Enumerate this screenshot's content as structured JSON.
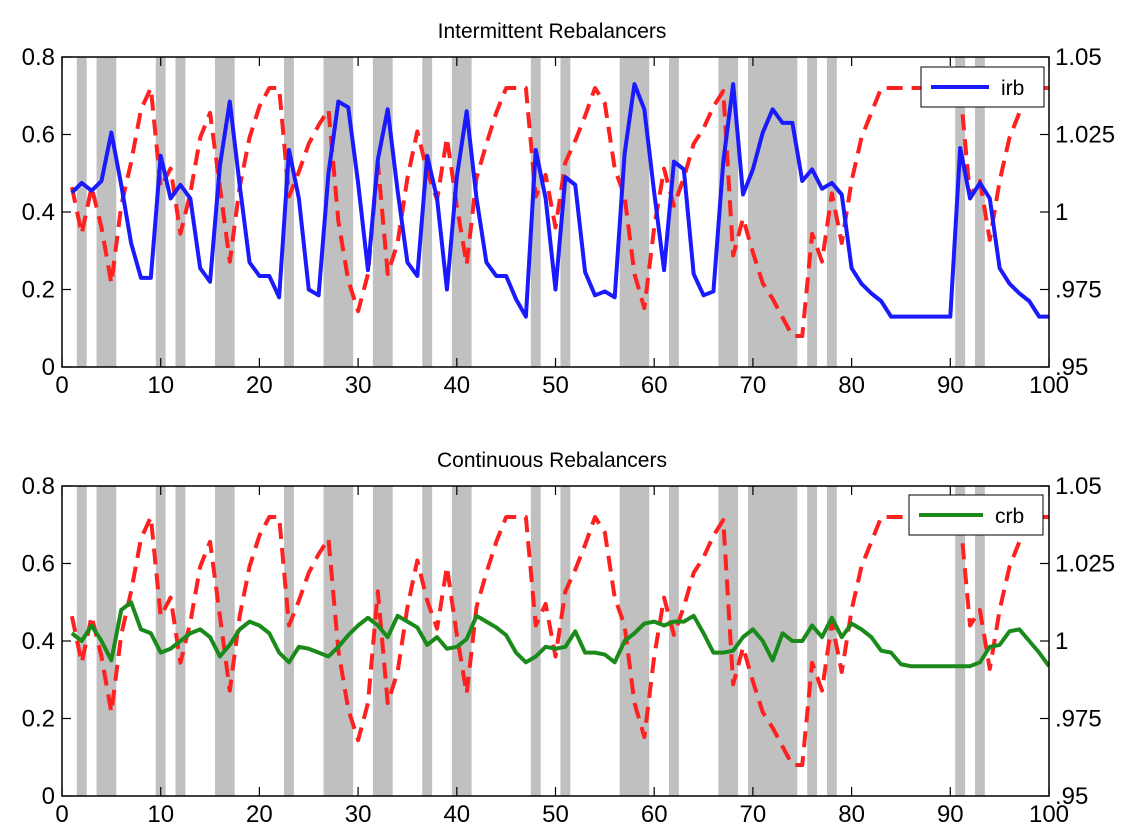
{
  "colors": {
    "background": "#ffffff",
    "shade": "#c0c0c0",
    "axes": "#000000",
    "dashed_series": "#ff2020",
    "irb_series": "#1a1aff",
    "crb_series": "#1a8a1a"
  },
  "chart_data": [
    {
      "type": "line",
      "title": "Intermittent Rebalancers",
      "xlim": [
        0,
        100
      ],
      "ylim": [
        0,
        0.8
      ],
      "y2lim": [
        0.95,
        1.05
      ],
      "grid": false,
      "legend_position": "top-right",
      "x_ticks": [
        0,
        10,
        20,
        30,
        40,
        50,
        60,
        70,
        80,
        90,
        100
      ],
      "x_tick_labels": [
        "0",
        "10",
        "20",
        "30",
        "40",
        "50",
        "60",
        "70",
        "80",
        "90",
        "100"
      ],
      "y_ticks": [
        0,
        0.2,
        0.4,
        0.6,
        0.8
      ],
      "y_tick_labels": [
        "0",
        "0.2",
        "0.4",
        "0.6",
        "0.8"
      ],
      "y2_ticks": [
        0.95,
        0.975,
        1.0,
        1.025,
        1.05
      ],
      "y2_tick_labels": [
        ".95",
        ".975",
        "1",
        "1.025",
        "1.05"
      ],
      "shaded_intervals": [
        [
          1.5,
          2.5
        ],
        [
          3.5,
          5.5
        ],
        [
          9.5,
          10.5
        ],
        [
          11.5,
          12.5
        ],
        [
          15.5,
          17.5
        ],
        [
          22.5,
          23.5
        ],
        [
          26.5,
          29.5
        ],
        [
          31.5,
          33.5
        ],
        [
          36.5,
          37.5
        ],
        [
          39.5,
          41.5
        ],
        [
          47.5,
          48.5
        ],
        [
          50.5,
          51.5
        ],
        [
          56.5,
          59.5
        ],
        [
          61.5,
          62.5
        ],
        [
          66.5,
          68.5
        ],
        [
          69.5,
          74.5
        ],
        [
          75.5,
          76.5
        ],
        [
          77.5,
          78.5
        ],
        [
          90.5,
          91.5
        ],
        [
          92.5,
          93.5
        ]
      ],
      "series": [
        {
          "name": "irb",
          "axis": "left",
          "style": "solid",
          "x": [
            1,
            2,
            3,
            4,
            5,
            6,
            7,
            8,
            9,
            10,
            11,
            12,
            13,
            14,
            15,
            16,
            17,
            18,
            19,
            20,
            21,
            22,
            23,
            24,
            25,
            26,
            27,
            28,
            29,
            30,
            31,
            32,
            33,
            34,
            35,
            36,
            37,
            38,
            39,
            40,
            41,
            42,
            43,
            44,
            45,
            46,
            47,
            48,
            49,
            50,
            51,
            52,
            53,
            54,
            55,
            56,
            57,
            58,
            59,
            60,
            61,
            62,
            63,
            64,
            65,
            66,
            67,
            68,
            69,
            70,
            71,
            72,
            73,
            74,
            75,
            76,
            77,
            78,
            79,
            80,
            81,
            82,
            83,
            84,
            85,
            86,
            87,
            88,
            89,
            90,
            91,
            92,
            93,
            94,
            95,
            96,
            97,
            98,
            99,
            100
          ],
          "y": [
            0.45,
            0.475,
            0.455,
            0.48,
            0.605,
            0.47,
            0.32,
            0.23,
            0.23,
            0.545,
            0.435,
            0.47,
            0.435,
            0.255,
            0.22,
            0.52,
            0.685,
            0.47,
            0.27,
            0.235,
            0.235,
            0.18,
            0.56,
            0.435,
            0.2,
            0.185,
            0.5,
            0.685,
            0.67,
            0.475,
            0.25,
            0.535,
            0.665,
            0.455,
            0.27,
            0.235,
            0.545,
            0.435,
            0.2,
            0.49,
            0.66,
            0.435,
            0.27,
            0.235,
            0.235,
            0.175,
            0.13,
            0.56,
            0.435,
            0.2,
            0.49,
            0.47,
            0.245,
            0.185,
            0.195,
            0.18,
            0.55,
            0.73,
            0.665,
            0.45,
            0.25,
            0.53,
            0.51,
            0.24,
            0.185,
            0.195,
            0.53,
            0.73,
            0.445,
            0.51,
            0.605,
            0.665,
            0.63,
            0.63,
            0.48,
            0.51,
            0.46,
            0.475,
            0.445,
            0.255,
            0.215,
            0.19,
            0.17,
            0.13,
            0.13,
            0.13,
            0.13,
            0.13,
            0.13,
            0.13,
            0.565,
            0.435,
            0.475,
            0.435,
            0.255,
            0.215,
            0.19,
            0.17,
            0.13,
            0.13
          ]
        },
        {
          "name": "",
          "axis": "right",
          "style": "dashed",
          "x": [
            1,
            2,
            3,
            4,
            5,
            6,
            7,
            8,
            9,
            10,
            11,
            12,
            13,
            14,
            15,
            16,
            17,
            18,
            19,
            20,
            21,
            22,
            23,
            24,
            25,
            26,
            27,
            28,
            29,
            30,
            31,
            32,
            33,
            34,
            35,
            36,
            37,
            38,
            39,
            40,
            41,
            42,
            43,
            44,
            45,
            46,
            47,
            48,
            49,
            50,
            51,
            52,
            53,
            54,
            55,
            56,
            57,
            58,
            59,
            60,
            61,
            62,
            63,
            64,
            65,
            66,
            67,
            68,
            69,
            70,
            71,
            72,
            73,
            74,
            75,
            76,
            77,
            78,
            79,
            80,
            81,
            82,
            83,
            84,
            85,
            86,
            87,
            88,
            89,
            90,
            91,
            92,
            93,
            94,
            95,
            96,
            97,
            98,
            99,
            100
          ],
          "y": [
            1.008,
            0.993,
            1.008,
            0.995,
            0.977,
            1.002,
            1.016,
            1.033,
            1.04,
            1.008,
            1.014,
            0.993,
            1.006,
            1.024,
            1.032,
            1.008,
            0.984,
            1.008,
            1.024,
            1.034,
            1.04,
            1.04,
            1.005,
            1.013,
            1.022,
            1.028,
            1.033,
            0.997,
            0.978,
            0.968,
            0.98,
            1.016,
            0.98,
            0.99,
            1.011,
            1.026,
            1.013,
            1.004,
            1.024,
            1.002,
            0.983,
            1.011,
            1.022,
            1.032,
            1.04,
            1.04,
            1.04,
            1.005,
            1.012,
            0.995,
            1.016,
            1.023,
            1.031,
            1.04,
            1.035,
            1.014,
            1.005,
            0.98,
            0.969,
            0.995,
            1.014,
            1.002,
            1.011,
            1.022,
            1.027,
            1.034,
            1.039,
            0.986,
            0.998,
            0.987,
            0.977,
            0.972,
            0.966,
            0.96,
            0.96,
            0.993,
            0.984,
            1.006,
            0.99,
            1.01,
            1.024,
            1.032,
            1.04,
            1.04,
            1.04,
            1.04,
            1.04,
            1.04,
            1.04,
            1.04,
            1.04,
            1.005,
            1.01,
            0.991,
            1.01,
            1.024,
            1.032,
            1.04,
            1.04,
            1.04
          ]
        }
      ]
    },
    {
      "type": "line",
      "title": "Continuous Rebalancers",
      "xlim": [
        0,
        100
      ],
      "ylim": [
        0,
        0.8
      ],
      "y2lim": [
        0.95,
        1.05
      ],
      "grid": false,
      "legend_position": "top-right",
      "x_ticks": [
        0,
        10,
        20,
        30,
        40,
        50,
        60,
        70,
        80,
        90,
        100
      ],
      "x_tick_labels": [
        "0",
        "10",
        "20",
        "30",
        "40",
        "50",
        "60",
        "70",
        "80",
        "90",
        "100"
      ],
      "y_ticks": [
        0,
        0.2,
        0.4,
        0.6,
        0.8
      ],
      "y_tick_labels": [
        "0",
        "0.2",
        "0.4",
        "0.6",
        "0.8"
      ],
      "y2_ticks": [
        0.95,
        0.975,
        1.0,
        1.025,
        1.05
      ],
      "y2_tick_labels": [
        ".95",
        ".975",
        "1",
        "1.025",
        "1.05"
      ],
      "shaded_intervals": [
        [
          1.5,
          2.5
        ],
        [
          3.5,
          5.5
        ],
        [
          9.5,
          10.5
        ],
        [
          11.5,
          12.5
        ],
        [
          15.5,
          17.5
        ],
        [
          22.5,
          23.5
        ],
        [
          26.5,
          29.5
        ],
        [
          31.5,
          33.5
        ],
        [
          36.5,
          37.5
        ],
        [
          39.5,
          41.5
        ],
        [
          47.5,
          48.5
        ],
        [
          50.5,
          51.5
        ],
        [
          56.5,
          59.5
        ],
        [
          61.5,
          62.5
        ],
        [
          66.5,
          68.5
        ],
        [
          69.5,
          74.5
        ],
        [
          75.5,
          76.5
        ],
        [
          77.5,
          78.5
        ],
        [
          90.5,
          91.5
        ],
        [
          92.5,
          93.5
        ]
      ],
      "series": [
        {
          "name": "crb",
          "axis": "left",
          "style": "solid",
          "x": [
            1,
            2,
            3,
            4,
            5,
            6,
            7,
            8,
            9,
            10,
            11,
            12,
            13,
            14,
            15,
            16,
            17,
            18,
            19,
            20,
            21,
            22,
            23,
            24,
            25,
            26,
            27,
            28,
            29,
            30,
            31,
            32,
            33,
            34,
            35,
            36,
            37,
            38,
            39,
            40,
            41,
            42,
            43,
            44,
            45,
            46,
            47,
            48,
            49,
            50,
            51,
            52,
            53,
            54,
            55,
            56,
            57,
            58,
            59,
            60,
            61,
            62,
            63,
            64,
            65,
            66,
            67,
            68,
            69,
            70,
            71,
            72,
            73,
            74,
            75,
            76,
            77,
            78,
            79,
            80,
            81,
            82,
            83,
            84,
            85,
            86,
            87,
            88,
            89,
            90,
            91,
            92,
            93,
            94,
            95,
            96,
            97,
            98,
            99,
            100
          ],
          "y": [
            0.42,
            0.4,
            0.44,
            0.4,
            0.35,
            0.48,
            0.5,
            0.43,
            0.42,
            0.37,
            0.38,
            0.4,
            0.42,
            0.43,
            0.41,
            0.36,
            0.39,
            0.43,
            0.45,
            0.44,
            0.42,
            0.37,
            0.345,
            0.385,
            0.38,
            0.37,
            0.36,
            0.385,
            0.415,
            0.44,
            0.46,
            0.44,
            0.41,
            0.465,
            0.45,
            0.435,
            0.39,
            0.41,
            0.38,
            0.385,
            0.405,
            0.465,
            0.45,
            0.435,
            0.415,
            0.37,
            0.345,
            0.36,
            0.385,
            0.38,
            0.385,
            0.425,
            0.37,
            0.37,
            0.365,
            0.345,
            0.4,
            0.42,
            0.445,
            0.45,
            0.44,
            0.45,
            0.45,
            0.465,
            0.42,
            0.37,
            0.37,
            0.375,
            0.41,
            0.43,
            0.4,
            0.35,
            0.42,
            0.4,
            0.4,
            0.44,
            0.41,
            0.46,
            0.41,
            0.445,
            0.43,
            0.41,
            0.375,
            0.37,
            0.34,
            0.335,
            0.335,
            0.335,
            0.335,
            0.335,
            0.335,
            0.335,
            0.345,
            0.385,
            0.39,
            0.425,
            0.43,
            0.4,
            0.37,
            0.335
          ]
        },
        {
          "name": "",
          "axis": "right",
          "style": "dashed",
          "x": [
            1,
            2,
            3,
            4,
            5,
            6,
            7,
            8,
            9,
            10,
            11,
            12,
            13,
            14,
            15,
            16,
            17,
            18,
            19,
            20,
            21,
            22,
            23,
            24,
            25,
            26,
            27,
            28,
            29,
            30,
            31,
            32,
            33,
            34,
            35,
            36,
            37,
            38,
            39,
            40,
            41,
            42,
            43,
            44,
            45,
            46,
            47,
            48,
            49,
            50,
            51,
            52,
            53,
            54,
            55,
            56,
            57,
            58,
            59,
            60,
            61,
            62,
            63,
            64,
            65,
            66,
            67,
            68,
            69,
            70,
            71,
            72,
            73,
            74,
            75,
            76,
            77,
            78,
            79,
            80,
            81,
            82,
            83,
            84,
            85,
            86,
            87,
            88,
            89,
            90,
            91,
            92,
            93,
            94,
            95,
            96,
            97,
            98,
            99,
            100
          ],
          "y": [
            1.008,
            0.993,
            1.008,
            0.995,
            0.977,
            1.002,
            1.016,
            1.033,
            1.04,
            1.008,
            1.014,
            0.993,
            1.006,
            1.024,
            1.032,
            1.008,
            0.984,
            1.008,
            1.024,
            1.034,
            1.04,
            1.04,
            1.005,
            1.013,
            1.022,
            1.028,
            1.033,
            0.997,
            0.978,
            0.968,
            0.98,
            1.016,
            0.98,
            0.99,
            1.011,
            1.026,
            1.013,
            1.004,
            1.024,
            1.002,
            0.983,
            1.011,
            1.022,
            1.032,
            1.04,
            1.04,
            1.04,
            1.005,
            1.012,
            0.995,
            1.016,
            1.023,
            1.031,
            1.04,
            1.035,
            1.014,
            1.005,
            0.98,
            0.969,
            0.995,
            1.014,
            1.002,
            1.011,
            1.022,
            1.027,
            1.034,
            1.039,
            0.986,
            0.998,
            0.987,
            0.977,
            0.972,
            0.966,
            0.96,
            0.96,
            0.993,
            0.984,
            1.006,
            0.99,
            1.01,
            1.024,
            1.032,
            1.04,
            1.04,
            1.04,
            1.04,
            1.04,
            1.04,
            1.04,
            1.04,
            1.04,
            1.005,
            1.01,
            0.991,
            1.01,
            1.024,
            1.032,
            1.04,
            1.04,
            1.04
          ]
        }
      ]
    }
  ]
}
